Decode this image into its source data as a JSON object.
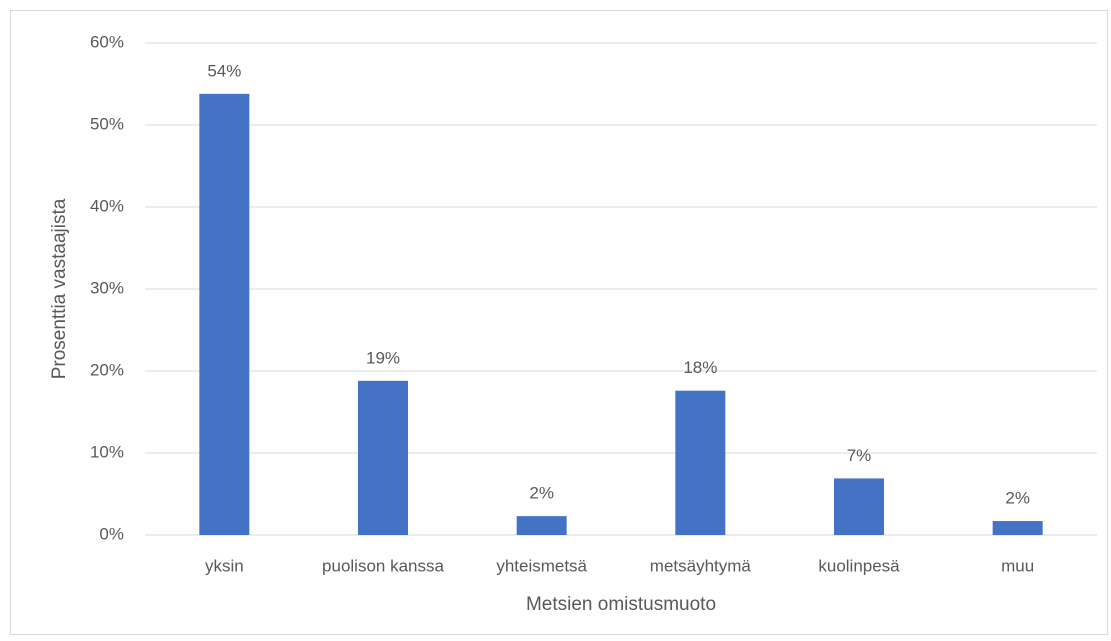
{
  "chart_data": {
    "type": "bar",
    "categories": [
      "yksin",
      "puolison kanssa",
      "yhteismetsä",
      "metsäyhtymä",
      "kuolinpesä",
      "muu"
    ],
    "values": [
      53.8,
      18.8,
      2.3,
      17.6,
      6.9,
      1.7
    ],
    "value_labels": [
      "54%",
      "19%",
      "2%",
      "18%",
      "7%",
      "2%"
    ],
    "color": "#4472c4",
    "x_label": "Metsien omistusmuoto",
    "y_label": "Prosenttia vastaajista",
    "ylim": [
      0,
      60
    ],
    "yticks": [
      {
        "value": 0,
        "label": "0%"
      },
      {
        "value": 10,
        "label": "10%"
      },
      {
        "value": 20,
        "label": "20%"
      },
      {
        "value": 30,
        "label": "30%"
      },
      {
        "value": 40,
        "label": "40%"
      },
      {
        "value": 50,
        "label": "50%"
      },
      {
        "value": 60,
        "label": "60%"
      }
    ],
    "grid": true
  }
}
